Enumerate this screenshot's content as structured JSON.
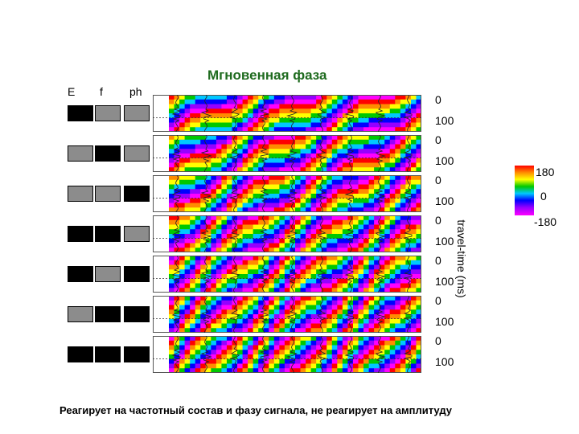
{
  "figure": {
    "title": "Мгновенная фаза",
    "column_headers": [
      "E",
      "f",
      "ph"
    ],
    "rows": [
      {
        "E": "black",
        "f": "gray",
        "ph": "gray",
        "top_tick": "0",
        "bottom_tick": "100"
      },
      {
        "E": "gray",
        "f": "black",
        "ph": "gray",
        "top_tick": "0",
        "bottom_tick": "100"
      },
      {
        "E": "gray",
        "f": "gray",
        "ph": "black",
        "top_tick": "0",
        "bottom_tick": "100"
      },
      {
        "E": "black",
        "f": "black",
        "ph": "gray",
        "top_tick": "0",
        "bottom_tick": "100"
      },
      {
        "E": "black",
        "f": "gray",
        "ph": "black",
        "top_tick": "0",
        "bottom_tick": "100"
      },
      {
        "E": "gray",
        "f": "black",
        "ph": "black",
        "top_tick": "0",
        "bottom_tick": "100"
      },
      {
        "E": "black",
        "f": "black",
        "ph": "black",
        "top_tick": "0",
        "bottom_tick": "100"
      }
    ],
    "y_axis_label": "travel-time (ms)",
    "colorbar": {
      "max": "180",
      "mid": "0",
      "min": "-180",
      "colors": [
        "#ff0000",
        "#ff8c00",
        "#ffff00",
        "#00c800",
        "#00c8ff",
        "#0000ff",
        "#9600ff",
        "#ff00ff"
      ]
    },
    "caption": "Реагирует на частотный состав и фазу сигнала, не реагирует на амплитуду",
    "colors": {
      "on": "#000000",
      "off": "#8c8c8c",
      "title": "#1f6b1f"
    }
  }
}
